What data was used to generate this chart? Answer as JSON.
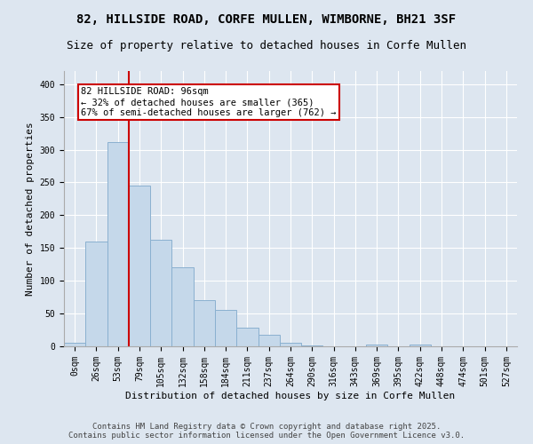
{
  "title_line1": "82, HILLSIDE ROAD, CORFE MULLEN, WIMBORNE, BH21 3SF",
  "title_line2": "Size of property relative to detached houses in Corfe Mullen",
  "xlabel": "Distribution of detached houses by size in Corfe Mullen",
  "ylabel": "Number of detached properties",
  "bin_labels": [
    "0sqm",
    "26sqm",
    "53sqm",
    "79sqm",
    "105sqm",
    "132sqm",
    "158sqm",
    "184sqm",
    "211sqm",
    "237sqm",
    "264sqm",
    "290sqm",
    "316sqm",
    "343sqm",
    "369sqm",
    "395sqm",
    "422sqm",
    "448sqm",
    "474sqm",
    "501sqm",
    "527sqm"
  ],
  "bar_values": [
    5,
    160,
    312,
    245,
    163,
    120,
    70,
    55,
    28,
    18,
    5,
    1,
    0,
    0,
    3,
    0,
    3,
    0,
    0,
    0,
    0
  ],
  "bar_color": "#c5d8ea",
  "bar_edgecolor": "#8ab0d0",
  "vline_color": "#cc0000",
  "vline_x_index": 3,
  "annotation_text_line1": "82 HILLSIDE ROAD: 96sqm",
  "annotation_text_line2": "← 32% of detached houses are smaller (365)",
  "annotation_text_line3": "67% of semi-detached houses are larger (762) →",
  "annotation_box_facecolor": "#ffffff",
  "annotation_box_edgecolor": "#cc0000",
  "background_color": "#dde6f0",
  "plot_background": "#dde6f0",
  "grid_color": "#ffffff",
  "ylim": [
    0,
    420
  ],
  "yticks": [
    0,
    50,
    100,
    150,
    200,
    250,
    300,
    350,
    400
  ],
  "footer_line1": "Contains HM Land Registry data © Crown copyright and database right 2025.",
  "footer_line2": "Contains public sector information licensed under the Open Government Licence v3.0.",
  "title_fontsize": 10,
  "subtitle_fontsize": 9,
  "axis_label_fontsize": 8,
  "tick_fontsize": 7,
  "annotation_fontsize": 7.5,
  "footer_fontsize": 6.5
}
